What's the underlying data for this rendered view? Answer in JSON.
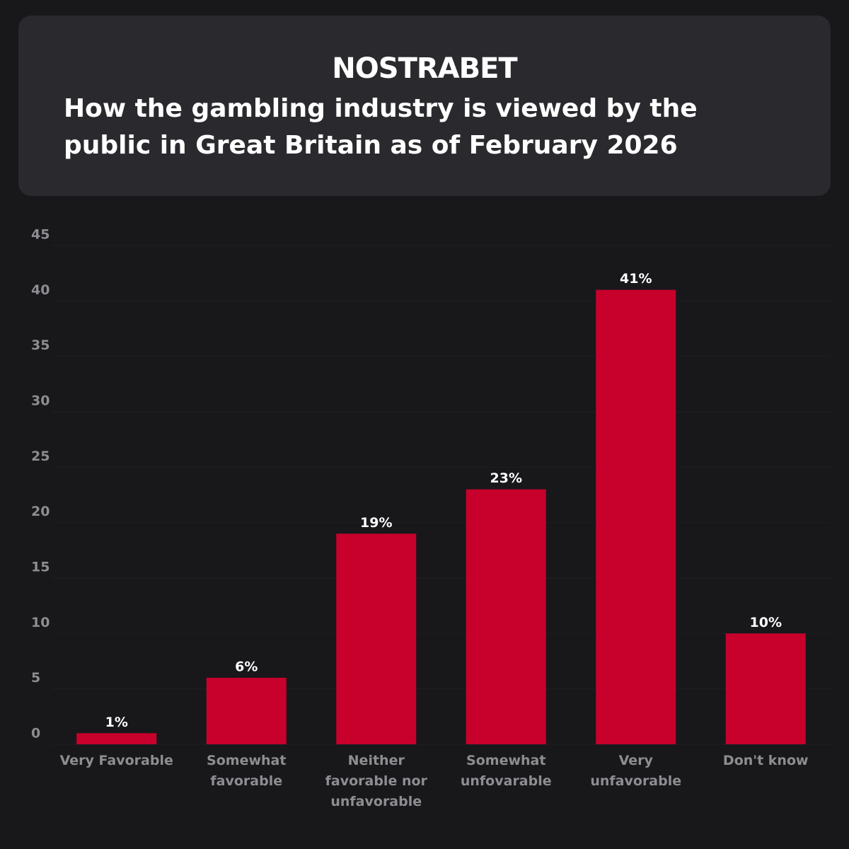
{
  "brand": "NOSTRABET",
  "chart_data": {
    "type": "bar",
    "title": "How the gambling industry is viewed by the public in Great Britain as of February 2026",
    "categories": [
      "Very Favorable",
      "Somewhat favorable",
      "Neither favorable nor unfavorable",
      "Somewhat unfovarable",
      "Very unfavorable",
      "Don't know"
    ],
    "values": [
      1,
      6,
      19,
      23,
      41,
      10
    ],
    "value_labels": [
      "1%",
      "6%",
      "19%",
      "23%",
      "41%",
      "10%"
    ],
    "color": "#c8002c",
    "ylim": [
      0,
      45
    ],
    "yticks": [
      0,
      5,
      10,
      15,
      20,
      25,
      30,
      35,
      40,
      45
    ],
    "grid": true
  }
}
